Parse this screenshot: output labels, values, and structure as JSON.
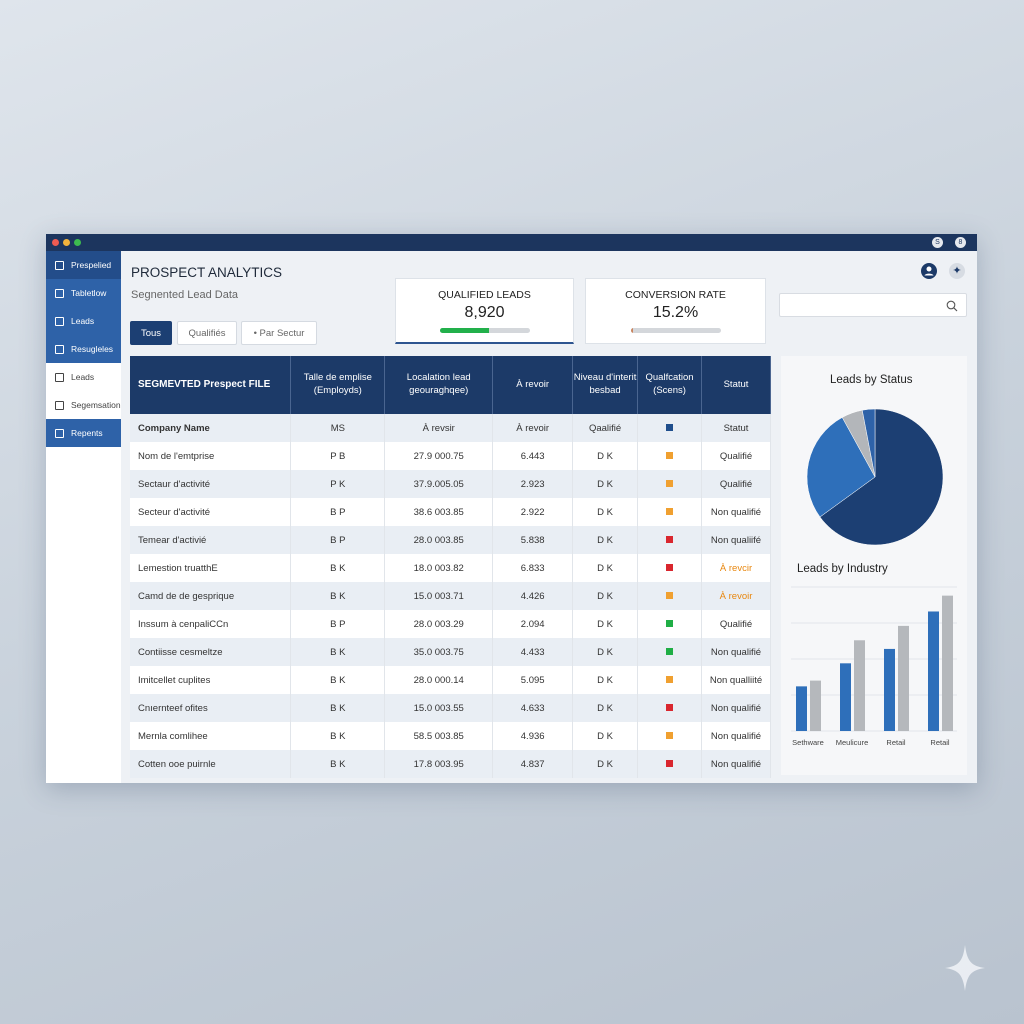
{
  "window": {
    "titlebar_icons": [
      "S",
      "8"
    ]
  },
  "sidebar": {
    "items": [
      {
        "label": "Prespelied",
        "icon": "chart-icon",
        "style": "dark"
      },
      {
        "label": "Tabletlow",
        "icon": "table-icon",
        "style": "blue"
      },
      {
        "label": "Leads",
        "icon": "home-icon",
        "style": "blue"
      },
      {
        "label": "Resugleles",
        "icon": "building-icon",
        "style": "blue"
      },
      {
        "label": "Leads",
        "icon": "document-icon",
        "style": "light"
      },
      {
        "label": "Segemsation",
        "icon": "segment-icon",
        "style": "light"
      },
      {
        "label": "Repents",
        "icon": "square-icon",
        "style": "blue"
      }
    ]
  },
  "header": {
    "title": "PROSPECT ANALYTICS",
    "subtitle": "Segnented Lead Data"
  },
  "filters": [
    "Tous",
    "Qualifiés",
    "• Par Sectur"
  ],
  "kpis": [
    {
      "label": "QUALIFIED LEADS",
      "value": "8,920",
      "progress": 0.55,
      "color": "#22b04b"
    },
    {
      "label": "CONVERSION RATE",
      "value": "15.2%",
      "progress": 0.03,
      "color": "#c98560"
    }
  ],
  "search": {
    "placeholder": ""
  },
  "table": {
    "headers": [
      "SEGMEVTED Prespect FILE",
      "Talle de emplise (Employds)",
      "Localation lead geouraghqee)",
      "À revoir",
      "Niveau d'interit besbad",
      "Qualfcation (Scens)",
      "Statut"
    ],
    "rows": [
      [
        "Company Name",
        "MS",
        "À revsir",
        "À revoir",
        "Qaalifié",
        "#1f4e8c",
        "Statut",
        ""
      ],
      [
        "Nom de l'emtprise",
        "P B",
        "27.9 000.75",
        "6.443",
        "D K",
        "#f0a030",
        "Qualifié",
        ""
      ],
      [
        "Sectaur d'activité",
        "P K",
        "37.9.005.05",
        "2.923",
        "D K",
        "#f0a030",
        "Qualifié",
        ""
      ],
      [
        "Secteur d'activité",
        "B P",
        "38.6 003.85",
        "2.922",
        "D K",
        "#f0a030",
        "Non qualifié",
        ""
      ],
      [
        "Temear d'activié",
        "B P",
        "28.0 003.85",
        "5.838",
        "D K",
        "#d9262e",
        "Non qualiifé",
        ""
      ],
      [
        "Lemestion truatthE",
        "B K",
        "18.0 003.82",
        "6.833",
        "D K",
        "#d9262e",
        "À revcir",
        "orange"
      ],
      [
        "Camd de de gesprique",
        "B K",
        "15.0 003.71",
        "4.426",
        "D K",
        "#f0a030",
        "À revoir",
        "orange"
      ],
      [
        "Inssum à cenpaliCCn",
        "B P",
        "28.0 003.29",
        "2.094",
        "D K",
        "#1fae45",
        "Qualifié",
        ""
      ],
      [
        "Contiisse cesmeltze",
        "B K",
        "35.0 003.75",
        "4.433",
        "D K",
        "#1fae45",
        "Non qualifié",
        ""
      ],
      [
        "Imitcellet cuplites",
        "B K",
        "28.0 000.14",
        "5.095",
        "D K",
        "#f0a030",
        "Non qualliité",
        ""
      ],
      [
        "Cnıernteef ofites",
        "B K",
        "15.0 003.55",
        "4.633",
        "D K",
        "#d9262e",
        "Non qualifié",
        ""
      ],
      [
        "Mernla comlihee",
        "B K",
        "58.5 003.85",
        "4.936",
        "D K",
        "#f0a030",
        "Non qualifié",
        ""
      ],
      [
        "Cotten ooe puirnle",
        "B K",
        "17.8 003.95",
        "4.837",
        "D K",
        "#d9262e",
        "Non qualifié",
        ""
      ]
    ]
  },
  "chart_data": [
    {
      "type": "pie",
      "title": "Leads by Status",
      "slices": [
        {
          "value": 65,
          "color": "#1c3f73"
        },
        {
          "value": 27,
          "color": "#2e6fba"
        },
        {
          "value": 5,
          "color": "#b3b6ba"
        },
        {
          "value": 3,
          "color": "#2e62a8"
        }
      ]
    },
    {
      "type": "bar",
      "title": "Leads by Industry",
      "categories": [
        "Sethware",
        "Meulicure",
        "Retail",
        "Retail"
      ],
      "series": [
        {
          "values": [
            31,
            47,
            57,
            83
          ],
          "color": "#2e6fba"
        },
        {
          "values": [
            35,
            63,
            73,
            94
          ],
          "color": "#b5b8bc"
        }
      ],
      "ylim": [
        0,
        100
      ],
      "grid": true
    }
  ]
}
